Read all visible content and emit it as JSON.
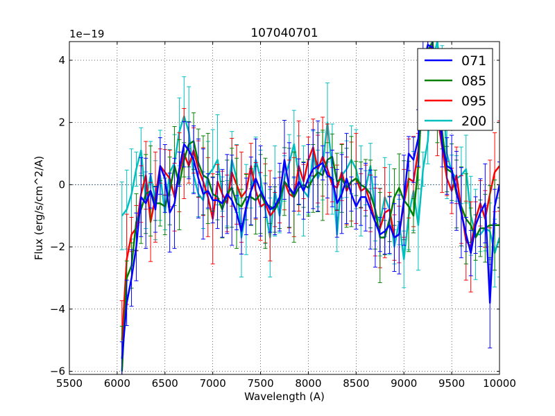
{
  "chart_data": {
    "type": "line",
    "title": "107040701",
    "xlabel": "Wavelength (A)",
    "ylabel": "Flux (erg/s/cm^2/A)",
    "y_offset_label": "1e−19",
    "xlim": [
      5500,
      10000
    ],
    "ylim": [
      -6.1,
      4.6
    ],
    "xticks": [
      5500,
      6000,
      6500,
      7000,
      7500,
      8000,
      8500,
      9000,
      9500,
      10000
    ],
    "xtick_labels": [
      "5500",
      "6000",
      "6500",
      "7000",
      "7500",
      "8000",
      "8500",
      "9000",
      "9500",
      "10000"
    ],
    "yticks": [
      -6,
      -4,
      -2,
      0,
      2,
      4
    ],
    "ytick_labels": [
      "−6",
      "−4",
      "−2",
      "0",
      "2",
      "4"
    ],
    "grid": true,
    "legend_position": "top-right",
    "zero_line": true,
    "x": [
      6050,
      6100,
      6150,
      6200,
      6250,
      6300,
      6350,
      6400,
      6450,
      6500,
      6550,
      6600,
      6650,
      6700,
      6750,
      6800,
      6850,
      6900,
      6950,
      7000,
      7050,
      7100,
      7150,
      7200,
      7250,
      7300,
      7350,
      7400,
      7450,
      7500,
      7550,
      7600,
      7650,
      7700,
      7750,
      7800,
      7850,
      7900,
      7950,
      8000,
      8050,
      8100,
      8150,
      8200,
      8250,
      8300,
      8350,
      8400,
      8450,
      8500,
      8550,
      8600,
      8650,
      8700,
      8750,
      8800,
      8850,
      8900,
      8950,
      9000,
      9050,
      9100,
      9150,
      9200,
      9250,
      9300,
      9350,
      9400,
      9450,
      9500,
      9550,
      9600,
      9650,
      9700,
      9750,
      9800,
      9850,
      9900,
      9950,
      10000
    ],
    "series": [
      {
        "name": "071",
        "color": "#0000ff",
        "values": [
          -5.6,
          -3.8,
          -3.0,
          -2.0,
          -0.4,
          -0.6,
          -0.2,
          -0.8,
          0.6,
          0.2,
          -0.9,
          -0.6,
          0.5,
          1.3,
          1.1,
          0.8,
          0.2,
          -0.3,
          -0.2,
          -0.5,
          -0.5,
          -0.6,
          -0.3,
          -0.5,
          -0.9,
          -1.5,
          -0.7,
          -0.2,
          0.2,
          -0.2,
          -0.5,
          -0.8,
          -0.7,
          -0.4,
          0.8,
          -0.1,
          -0.3,
          0.1,
          -0.2,
          0.2,
          0.5,
          0.6,
          0.7,
          0.3,
          0.2,
          -0.6,
          -0.3,
          0.2,
          -0.3,
          -0.7,
          -0.4,
          -0.4,
          -0.8,
          -1.2,
          -1.6,
          -1.5,
          -1.3,
          -1.7,
          -1.6,
          -0.5,
          1.0,
          0.8,
          1.5,
          3.8,
          4.5,
          4.4,
          3.0,
          1.3,
          0.6,
          0.5,
          -0.2,
          -0.9,
          -1.6,
          -2.2,
          -1.3,
          -0.9,
          -0.6,
          -3.8,
          -0.7,
          0.0
        ]
      },
      {
        "name": "085",
        "color": "#008000",
        "values": [
          -6.0,
          -3.0,
          -2.6,
          -1.2,
          -0.8,
          -0.3,
          -0.2,
          -0.6,
          -0.6,
          -0.7,
          -0.2,
          0.6,
          0.0,
          0.8,
          1.3,
          1.4,
          0.7,
          0.3,
          0.2,
          -0.3,
          -0.4,
          -0.8,
          -0.3,
          -0.1,
          -0.6,
          -0.7,
          -0.4,
          -0.4,
          -0.5,
          -0.3,
          -0.6,
          -0.7,
          -0.8,
          -0.5,
          0.1,
          -0.1,
          -0.4,
          -0.1,
          0.0,
          -0.1,
          0.2,
          0.4,
          0.3,
          0.8,
          0.9,
          0.1,
          0.2,
          -0.1,
          0.1,
          0.2,
          0.0,
          -0.1,
          -0.3,
          -0.8,
          -1.7,
          -1.7,
          -1.1,
          -0.4,
          -0.1,
          -0.5,
          -0.7,
          -1.0,
          0.6,
          3.4,
          4.3,
          4.6,
          2.8,
          1.7,
          0.5,
          0.4,
          -0.3,
          -0.7,
          -1.1,
          -1.3,
          -1.7,
          -1.4,
          -1.4,
          -1.3,
          -1.3,
          -1.3
        ]
      },
      {
        "name": "095",
        "color": "#ff0000",
        "values": [
          -5.0,
          -2.4,
          -1.6,
          -1.4,
          -0.3,
          0.3,
          -1.2,
          -0.4,
          0.6,
          0.4,
          0.2,
          -0.4,
          0.4,
          1.0,
          0.6,
          1.1,
          0.5,
          0.1,
          -0.4,
          -1.1,
          0.1,
          -0.3,
          -0.6,
          0.4,
          0.0,
          -0.4,
          -0.2,
          0.6,
          -0.2,
          -0.7,
          -0.6,
          -1.0,
          -0.8,
          -0.5,
          0.1,
          -0.3,
          -0.4,
          0.6,
          0.1,
          0.8,
          1.2,
          0.5,
          0.9,
          0.5,
          0.0,
          -0.1,
          0.4,
          -0.2,
          0.1,
          0.2,
          -0.2,
          -0.1,
          -0.6,
          -1.2,
          -1.4,
          -0.9,
          -0.8,
          -1.7,
          -1.6,
          -0.6,
          0.2,
          0.1,
          1.1,
          3.6,
          4.2,
          4.5,
          2.2,
          1.2,
          0.2,
          -0.2,
          0.3,
          -0.8,
          -1.8,
          -2.0,
          -1.1,
          -0.6,
          -1.1,
          -0.3,
          0.4,
          0.6
        ]
      },
      {
        "name": "200",
        "color": "#00bfbf",
        "values": [
          -1.0,
          -0.8,
          -0.3,
          0.5,
          1.1,
          -0.5,
          0.3,
          -0.5,
          0.3,
          -0.9,
          0.4,
          0.7,
          1.7,
          2.2,
          1.7,
          0.3,
          -0.3,
          -0.5,
          0.3,
          0.5,
          0.8,
          -0.3,
          -0.6,
          0.8,
          0.2,
          -1.7,
          -0.8,
          -0.2,
          0.8,
          0.2,
          -0.8,
          -1.7,
          -0.2,
          -1.0,
          0.2,
          0.7,
          1.3,
          0.3,
          -0.2,
          -0.4,
          1.0,
          0.2,
          0.6,
          2.0,
          0.5,
          -1.6,
          0.3,
          0.5,
          0.8,
          0.5,
          -0.2,
          -0.1,
          0.6,
          -0.9,
          -1.2,
          -0.4,
          -0.8,
          -2.0,
          -1.2,
          -2.4,
          -1.0,
          -0.2,
          -1.3,
          0.5,
          1.4,
          4.0,
          4.6,
          3.2,
          1.0,
          0.4,
          0.2,
          0.3,
          0.5,
          -1.0,
          -1.6,
          -1.6,
          -1.4,
          -1.5,
          -2.2,
          -1.7
        ]
      }
    ]
  }
}
